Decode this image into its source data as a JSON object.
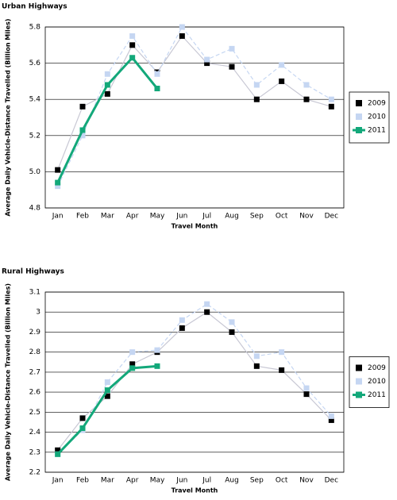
{
  "chart_data": [
    {
      "type": "line",
      "title": "Urban Highways",
      "x_label": "Travel Month",
      "y_label": "Average Daily Vehicle-Distance Travelled (Billion Miles)",
      "categories": [
        "Jan",
        "Feb",
        "Mar",
        "Apr",
        "May",
        "Jun",
        "Jul",
        "Aug",
        "Sep",
        "Oct",
        "Nov",
        "Dec"
      ],
      "ylim": [
        4.8,
        5.8
      ],
      "yticks": [
        4.8,
        {
          "value": 5,
          "label": "5.0"
        },
        5.2,
        5.4,
        5.6,
        5.8
      ],
      "grid": true,
      "legend": "right",
      "series": [
        {
          "name": "2009",
          "color": "#000000",
          "line_color": "#c8c8d4",
          "values": [
            5.01,
            5.36,
            5.43,
            5.7,
            5.55,
            5.75,
            5.6,
            5.58,
            5.4,
            5.5,
            5.4,
            5.36
          ]
        },
        {
          "name": "2010",
          "color": "#c5d6f2",
          "line_color": "#c5d6f2",
          "values": [
            4.92,
            5.2,
            5.54,
            5.75,
            5.54,
            5.8,
            5.62,
            5.68,
            5.48,
            5.59,
            5.48,
            5.4
          ]
        },
        {
          "name": "2011",
          "color": "#13a87a",
          "line_color": "#13a87a",
          "values": [
            4.94,
            5.23,
            5.48,
            5.63,
            5.46,
            null,
            null,
            null,
            null,
            null,
            null,
            null
          ]
        }
      ]
    },
    {
      "type": "line",
      "title": "Rural Highways",
      "x_label": "Travel Month",
      "y_label": "Average Daily Vehicle-Distance Travelled (Billion Miles)",
      "categories": [
        "Jan",
        "Feb",
        "Mar",
        "Apr",
        "May",
        "Jun",
        "Jul",
        "Aug",
        "Sep",
        "Oct",
        "Nov",
        "Dec"
      ],
      "ylim": [
        2.2,
        3.1
      ],
      "yticks": [
        2.2,
        2.3,
        2.4,
        2.5,
        2.6,
        2.7,
        2.8,
        2.9,
        3,
        3.1
      ],
      "grid": true,
      "legend": "right",
      "series": [
        {
          "name": "2009",
          "color": "#000000",
          "line_color": "#c8c8d4",
          "values": [
            2.31,
            2.47,
            2.58,
            2.74,
            2.8,
            2.92,
            3.0,
            2.9,
            2.73,
            2.71,
            2.59,
            2.46
          ]
        },
        {
          "name": "2010",
          "color": "#c5d6f2",
          "line_color": "#c5d6f2",
          "values": [
            2.29,
            2.41,
            2.65,
            2.8,
            2.81,
            2.96,
            3.04,
            2.95,
            2.78,
            2.8,
            2.62,
            2.48
          ]
        },
        {
          "name": "2011",
          "color": "#13a87a",
          "line_color": "#13a87a",
          "values": [
            2.29,
            2.42,
            2.61,
            2.72,
            2.73,
            null,
            null,
            null,
            null,
            null,
            null,
            null
          ]
        }
      ]
    }
  ]
}
